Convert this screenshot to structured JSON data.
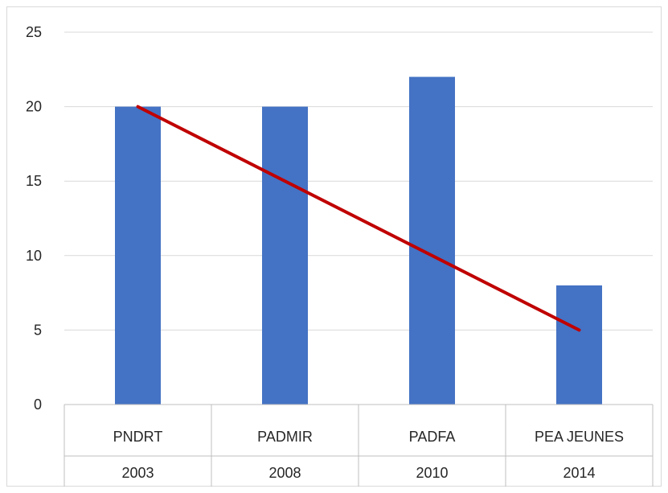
{
  "chart_data": {
    "type": "bar",
    "title": "",
    "xlabel": "",
    "ylabel": "",
    "categories": [
      "PNDRT",
      "PADMIR",
      "PADFA",
      "PEA JEUNES"
    ],
    "category_years": [
      "2003",
      "2008",
      "2010",
      "2014"
    ],
    "values": [
      20,
      20,
      22,
      8
    ],
    "trend_line": {
      "from_category": 0,
      "from_value": 20,
      "to_category": 3,
      "to_value": 5
    },
    "ylim": [
      0,
      25
    ],
    "yticks": [
      "0",
      "5",
      "10",
      "15",
      "20",
      "25"
    ],
    "grid": true,
    "legend": "none",
    "colors": {
      "bar": "#4472C4",
      "trend": "#C00000",
      "grid": "#D9D9D9",
      "axis": "#BFBFBF",
      "border": "#D9D9D9"
    }
  }
}
